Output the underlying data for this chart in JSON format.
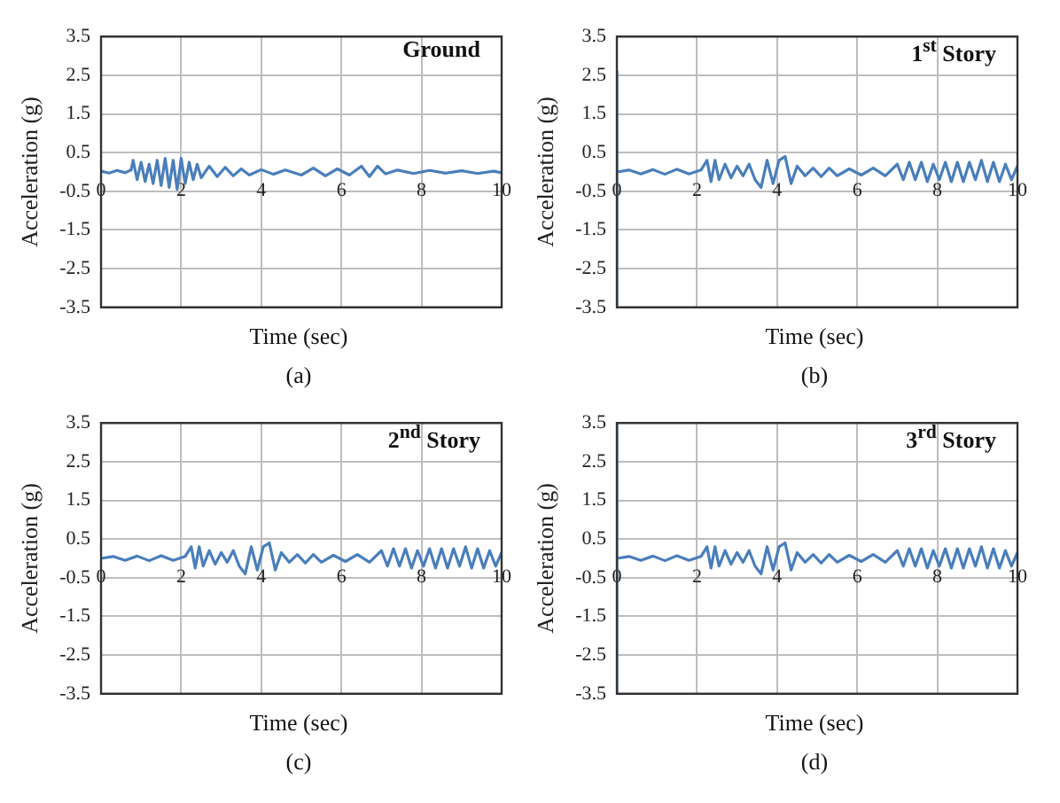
{
  "chart_data": [
    {
      "type": "line",
      "title": "Ground",
      "xlabel": "Time (sec)",
      "ylabel": "Acceleration (g)",
      "annotations": [
        "(a)"
      ],
      "xlim": [
        0,
        10
      ],
      "xticks": [
        0,
        2,
        4,
        6,
        8,
        10
      ],
      "ylim": [
        -3.5,
        3.5
      ],
      "yticks": [
        -3.5,
        -2.5,
        -1.5,
        -0.5,
        0.5,
        1.5,
        2.5,
        3.5
      ],
      "grid": true,
      "marker": "none",
      "series": [
        {
          "color": "#4a7ebb",
          "x": [
            0,
            0.2,
            0.4,
            0.6,
            0.75,
            0.8,
            0.9,
            1.0,
            1.1,
            1.2,
            1.3,
            1.4,
            1.5,
            1.6,
            1.7,
            1.8,
            1.9,
            2.0,
            2.1,
            2.2,
            2.3,
            2.4,
            2.5,
            2.7,
            2.9,
            3.1,
            3.3,
            3.5,
            3.7,
            4.0,
            4.3,
            4.6,
            5.0,
            5.3,
            5.6,
            5.9,
            6.2,
            6.5,
            6.7,
            6.9,
            7.1,
            7.4,
            7.8,
            8.2,
            8.6,
            9.0,
            9.4,
            9.8,
            10
          ],
          "values": [
            0.02,
            -0.03,
            0.04,
            -0.02,
            0.05,
            0.3,
            -0.2,
            0.25,
            -0.25,
            0.2,
            -0.3,
            0.3,
            -0.35,
            0.35,
            -0.4,
            0.3,
            -0.45,
            0.35,
            -0.3,
            0.25,
            -0.2,
            0.2,
            -0.15,
            0.15,
            -0.12,
            0.12,
            -0.1,
            0.08,
            -0.08,
            0.06,
            -0.06,
            0.05,
            -0.08,
            0.1,
            -0.1,
            0.08,
            -0.08,
            0.15,
            -0.12,
            0.15,
            -0.05,
            0.05,
            -0.04,
            0.04,
            -0.03,
            0.03,
            -0.04,
            0.02,
            -0.02
          ]
        }
      ]
    },
    {
      "type": "line",
      "title": "1$^{st}$ Story",
      "xlabel": "Time (sec)",
      "ylabel": "Acceleration (g)",
      "annotations": [
        "(b)"
      ],
      "xlim": [
        0,
        10
      ],
      "xticks": [
        0,
        2,
        4,
        6,
        8,
        10
      ],
      "ylim": [
        -3.5,
        3.5
      ],
      "yticks": [
        -3.5,
        -2.5,
        -1.5,
        -0.5,
        0.5,
        1.5,
        2.5,
        3.5
      ],
      "grid": true,
      "marker": "none",
      "series": [
        {
          "color": "#4a7ebb",
          "x": [
            0,
            0,
            0,
            0.3,
            0.6,
            0.9,
            1.2,
            1.5,
            1.8,
            2.1,
            2.25,
            2.35,
            2.45,
            2.55,
            2.7,
            2.85,
            3.0,
            3.15,
            3.3,
            3.45,
            3.6,
            3.75,
            3.9,
            4.05,
            4.2,
            4.35,
            4.5,
            4.7,
            4.9,
            5.1,
            5.3,
            5.5,
            5.8,
            6.1,
            6.4,
            6.7,
            7.0,
            7.15,
            7.3,
            7.45,
            7.6,
            7.75,
            7.9,
            8.05,
            8.2,
            8.35,
            8.5,
            8.65,
            8.8,
            8.95,
            9.1,
            9.25,
            9.4,
            9.55,
            9.7,
            9.85,
            10
          ],
          "values": [
            2.6,
            -3.5,
            0,
            0.05,
            -0.05,
            0.06,
            -0.06,
            0.07,
            -0.05,
            0.05,
            0.3,
            -0.25,
            0.3,
            -0.2,
            0.2,
            -0.15,
            0.15,
            -0.1,
            0.2,
            -0.2,
            -0.4,
            0.3,
            -0.3,
            0.3,
            0.4,
            -0.3,
            0.15,
            -0.1,
            0.1,
            -0.12,
            0.1,
            -0.1,
            0.08,
            -0.08,
            0.1,
            -0.1,
            0.2,
            -0.2,
            0.25,
            -0.2,
            0.25,
            -0.25,
            0.2,
            -0.2,
            0.25,
            -0.25,
            0.25,
            -0.25,
            0.25,
            -0.2,
            0.3,
            -0.25,
            0.25,
            -0.25,
            0.2,
            -0.2,
            0.15
          ]
        }
      ]
    },
    {
      "type": "line",
      "title": "2$^{nd}$ Story",
      "xlabel": "Time (sec)",
      "ylabel": "Acceleration (g)",
      "annotations": [
        "(c)"
      ],
      "xlim": [
        0,
        10
      ],
      "xticks": [
        0,
        2,
        4,
        6,
        8,
        10
      ],
      "ylim": [
        -3.5,
        3.5
      ],
      "yticks": [
        -3.5,
        -2.5,
        -1.5,
        -0.5,
        0.5,
        1.5,
        2.5,
        3.5
      ],
      "grid": true,
      "marker": "none",
      "series": [
        {
          "color": "#4a7ebb",
          "x": [
            0,
            0.3,
            0.6,
            0.9,
            1.2,
            1.5,
            1.8,
            2.1,
            2.25,
            2.35,
            2.45,
            2.55,
            2.7,
            2.85,
            3.0,
            3.15,
            3.3,
            3.45,
            3.6,
            3.75,
            3.9,
            4.05,
            4.2,
            4.35,
            4.5,
            4.7,
            4.9,
            5.1,
            5.3,
            5.5,
            5.8,
            6.1,
            6.4,
            6.7,
            7.0,
            7.15,
            7.3,
            7.45,
            7.6,
            7.75,
            7.9,
            8.05,
            8.2,
            8.35,
            8.5,
            8.65,
            8.8,
            8.95,
            9.1,
            9.25,
            9.4,
            9.55,
            9.7,
            9.85,
            10
          ],
          "values": [
            0,
            0.05,
            -0.05,
            0.06,
            -0.06,
            0.07,
            -0.05,
            0.05,
            0.3,
            -0.25,
            0.3,
            -0.2,
            0.2,
            -0.15,
            0.15,
            -0.1,
            0.2,
            -0.2,
            -0.4,
            0.3,
            -0.3,
            0.3,
            0.4,
            -0.3,
            0.15,
            -0.1,
            0.1,
            -0.12,
            0.1,
            -0.1,
            0.08,
            -0.08,
            0.1,
            -0.1,
            0.2,
            -0.2,
            0.25,
            -0.2,
            0.25,
            -0.25,
            0.2,
            -0.2,
            0.25,
            -0.25,
            0.25,
            -0.25,
            0.25,
            -0.2,
            0.3,
            -0.25,
            0.25,
            -0.25,
            0.2,
            -0.2,
            0.15
          ]
        }
      ]
    },
    {
      "type": "line",
      "title": "3$^{rd}$ Story",
      "xlabel": "Time (sec)",
      "ylabel": "Acceleration (g)",
      "annotations": [
        "(d)"
      ],
      "xlim": [
        0,
        10
      ],
      "xticks": [
        0,
        2,
        4,
        6,
        8,
        10
      ],
      "ylim": [
        -3.5,
        3.5
      ],
      "yticks": [
        -3.5,
        -2.5,
        -1.5,
        -0.5,
        0.5,
        1.5,
        2.5,
        3.5
      ],
      "grid": true,
      "marker": "none",
      "series": [
        {
          "color": "#4a7ebb",
          "x": [
            0,
            0,
            0,
            0.3,
            0.6,
            0.9,
            1.2,
            1.5,
            1.8,
            2.1,
            2.25,
            2.35,
            2.45,
            2.55,
            2.7,
            2.85,
            3.0,
            3.15,
            3.3,
            3.45,
            3.6,
            3.75,
            3.9,
            4.05,
            4.2,
            4.35,
            4.5,
            4.7,
            4.9,
            5.1,
            5.3,
            5.5,
            5.8,
            6.1,
            6.4,
            6.7,
            7.0,
            7.15,
            7.3,
            7.45,
            7.6,
            7.75,
            7.9,
            8.05,
            8.2,
            8.35,
            8.5,
            8.65,
            8.8,
            8.95,
            9.1,
            9.25,
            9.4,
            9.55,
            9.7,
            9.85,
            10
          ],
          "values": [
            3.5,
            -3.5,
            0,
            0.05,
            -0.05,
            0.06,
            -0.06,
            0.07,
            -0.05,
            0.05,
            0.3,
            -0.25,
            0.3,
            -0.2,
            0.2,
            -0.15,
            0.15,
            -0.1,
            0.2,
            -0.2,
            -0.4,
            0.3,
            -0.3,
            0.3,
            0.4,
            -0.3,
            0.15,
            -0.1,
            0.1,
            -0.12,
            0.1,
            -0.1,
            0.08,
            -0.08,
            0.1,
            -0.1,
            0.2,
            -0.2,
            0.25,
            -0.2,
            0.25,
            -0.25,
            0.2,
            -0.2,
            0.25,
            -0.25,
            0.25,
            -0.25,
            0.25,
            -0.2,
            0.3,
            -0.25,
            0.25,
            -0.25,
            0.2,
            -0.2,
            0.15
          ]
        }
      ]
    }
  ]
}
